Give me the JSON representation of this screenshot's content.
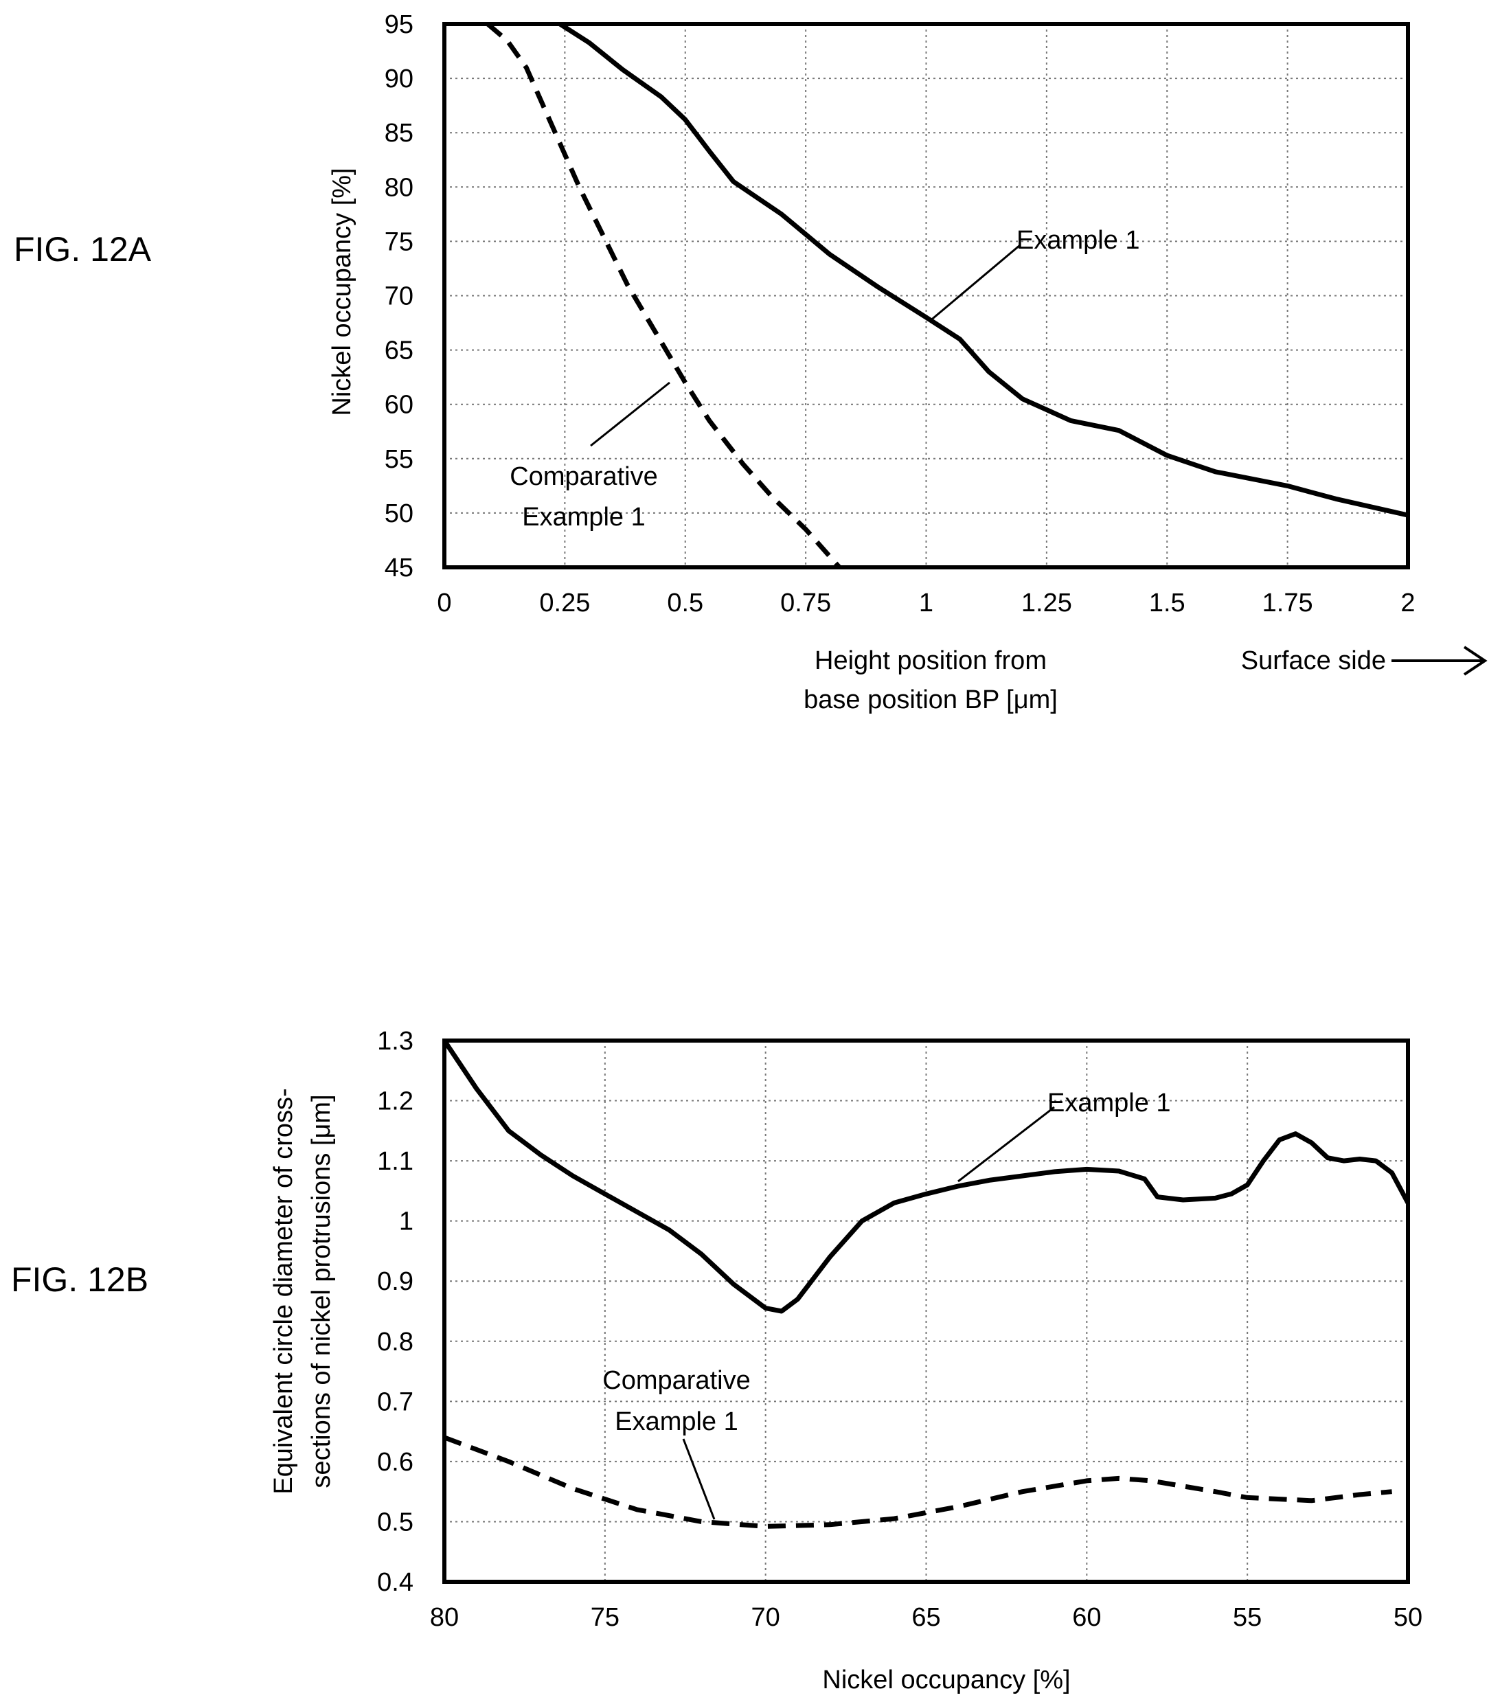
{
  "chart_data": [
    {
      "id": "fig12a",
      "type": "line",
      "fig_label": "FIG. 12A",
      "xlabel_lines": [
        "Height position from",
        "base position BP [μm]"
      ],
      "ylabel": "Nickel occupancy [%]",
      "xlim": [
        0,
        2
      ],
      "ylim": [
        45,
        95
      ],
      "xticks": [
        "0",
        "0.25",
        "0.5",
        "0.75",
        "1",
        "1.25",
        "1.5",
        "1.75",
        "2"
      ],
      "yticks": [
        "45",
        "50",
        "55",
        "60",
        "65",
        "70",
        "75",
        "80",
        "85",
        "90",
        "95"
      ],
      "grid": true,
      "direction_label": "Surface side",
      "series": [
        {
          "name": "Example 1",
          "style": "solid",
          "annotation_lines": [
            "Example 1"
          ],
          "points": [
            [
              0.24,
              95
            ],
            [
              0.3,
              93.3
            ],
            [
              0.37,
              90.8
            ],
            [
              0.45,
              88.3
            ],
            [
              0.5,
              86.2
            ],
            [
              0.55,
              83.3
            ],
            [
              0.6,
              80.5
            ],
            [
              0.7,
              77.5
            ],
            [
              0.8,
              73.8
            ],
            [
              0.9,
              70.8
            ],
            [
              1.0,
              68.0
            ],
            [
              1.07,
              66.0
            ],
            [
              1.13,
              63.0
            ],
            [
              1.2,
              60.5
            ],
            [
              1.3,
              58.5
            ],
            [
              1.4,
              57.6
            ],
            [
              1.5,
              55.3
            ],
            [
              1.6,
              53.8
            ],
            [
              1.75,
              52.5
            ],
            [
              1.85,
              51.3
            ],
            [
              2.0,
              49.8
            ]
          ]
        },
        {
          "name": "Comparative Example 1",
          "style": "dashed",
          "annotation_lines": [
            "Comparative",
            "Example 1"
          ],
          "points": [
            [
              0.09,
              95
            ],
            [
              0.13,
              93.5
            ],
            [
              0.17,
              91
            ],
            [
              0.2,
              88
            ],
            [
              0.24,
              84
            ],
            [
              0.28,
              80
            ],
            [
              0.33,
              75.5
            ],
            [
              0.38,
              71
            ],
            [
              0.44,
              66.5
            ],
            [
              0.5,
              62
            ],
            [
              0.55,
              58.5
            ],
            [
              0.62,
              54.5
            ],
            [
              0.68,
              51.5
            ],
            [
              0.75,
              48.5
            ],
            [
              0.82,
              45
            ]
          ]
        }
      ]
    },
    {
      "id": "fig12b",
      "type": "line",
      "fig_label": "FIG. 12B",
      "xlabel": "Nickel occupancy [%]",
      "ylabel_lines": [
        "Equivalent circle diameter of cross-",
        "sections of nickel protrusions [μm]"
      ],
      "xlim": [
        80,
        50
      ],
      "ylim": [
        0.4,
        1.3
      ],
      "xticks": [
        "80",
        "75",
        "70",
        "65",
        "60",
        "55",
        "50"
      ],
      "yticks": [
        "0.4",
        "0.5",
        "0.6",
        "0.7",
        "0.8",
        "0.9",
        "1",
        "1.1",
        "1.2",
        "1.3"
      ],
      "grid": true,
      "series": [
        {
          "name": "Example 1",
          "style": "solid",
          "annotation_lines": [
            "Example 1"
          ],
          "points": [
            [
              80,
              1.3
            ],
            [
              79,
              1.22
            ],
            [
              78,
              1.15
            ],
            [
              77,
              1.11
            ],
            [
              76,
              1.075
            ],
            [
              75,
              1.045
            ],
            [
              74,
              1.015
            ],
            [
              73,
              0.985
            ],
            [
              72,
              0.945
            ],
            [
              71,
              0.895
            ],
            [
              70,
              0.855
            ],
            [
              69.5,
              0.85
            ],
            [
              69,
              0.87
            ],
            [
              68,
              0.94
            ],
            [
              67,
              1.0
            ],
            [
              66,
              1.03
            ],
            [
              65,
              1.045
            ],
            [
              64,
              1.058
            ],
            [
              63,
              1.068
            ],
            [
              62,
              1.075
            ],
            [
              61,
              1.082
            ],
            [
              60,
              1.086
            ],
            [
              59,
              1.083
            ],
            [
              58.2,
              1.07
            ],
            [
              57.8,
              1.04
            ],
            [
              57,
              1.035
            ],
            [
              56,
              1.038
            ],
            [
              55.5,
              1.045
            ],
            [
              55,
              1.06
            ],
            [
              54.5,
              1.1
            ],
            [
              54,
              1.135
            ],
            [
              53.5,
              1.145
            ],
            [
              53,
              1.13
            ],
            [
              52.5,
              1.105
            ],
            [
              52,
              1.1
            ],
            [
              51.5,
              1.103
            ],
            [
              51,
              1.1
            ],
            [
              50.5,
              1.08
            ],
            [
              50,
              1.03
            ]
          ]
        },
        {
          "name": "Comparative Example 1",
          "style": "dashed",
          "annotation_lines": [
            "Comparative",
            "Example 1"
          ],
          "points": [
            [
              80,
              0.64
            ],
            [
              78,
              0.6
            ],
            [
              76,
              0.555
            ],
            [
              74,
              0.52
            ],
            [
              72,
              0.5
            ],
            [
              70,
              0.492
            ],
            [
              68,
              0.495
            ],
            [
              66,
              0.505
            ],
            [
              64,
              0.525
            ],
            [
              62,
              0.55
            ],
            [
              60,
              0.568
            ],
            [
              59,
              0.572
            ],
            [
              58,
              0.568
            ],
            [
              56,
              0.55
            ],
            [
              55,
              0.54
            ],
            [
              53,
              0.535
            ],
            [
              51.5,
              0.545
            ],
            [
              50.5,
              0.55
            ]
          ]
        }
      ]
    }
  ]
}
